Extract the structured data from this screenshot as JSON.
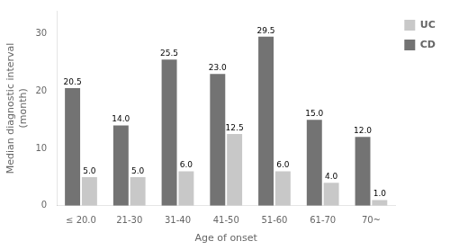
{
  "chart_data": {
    "type": "bar",
    "categories": [
      "≤ 20.0",
      "21-30",
      "31-40",
      "41-50",
      "51-60",
      "61-70",
      "70~"
    ],
    "series": [
      {
        "name": "CD",
        "color": "#737373",
        "values": [
          20.5,
          14.0,
          25.5,
          23.0,
          29.5,
          15.0,
          12.0
        ],
        "value_labels": [
          "20.5",
          "14.0",
          "25.5",
          "23.0",
          "29.5",
          "15.0",
          "12.0"
        ]
      },
      {
        "name": "UC",
        "color": "#c8c8c8",
        "values": [
          5.0,
          5.0,
          6.0,
          12.5,
          6.0,
          4.0,
          1.0
        ],
        "value_labels": [
          "5.0",
          "5.0",
          "6.0",
          "12.5",
          "6.0",
          "4.0",
          "1.0"
        ]
      }
    ],
    "xlabel": "Age of onset",
    "ylabel": "Median diagnostic interval\n(month)",
    "ylim": [
      0,
      34
    ],
    "yticks": [
      0,
      10,
      20,
      30
    ],
    "grid": false,
    "legend": "upper right",
    "data_labels": true
  }
}
